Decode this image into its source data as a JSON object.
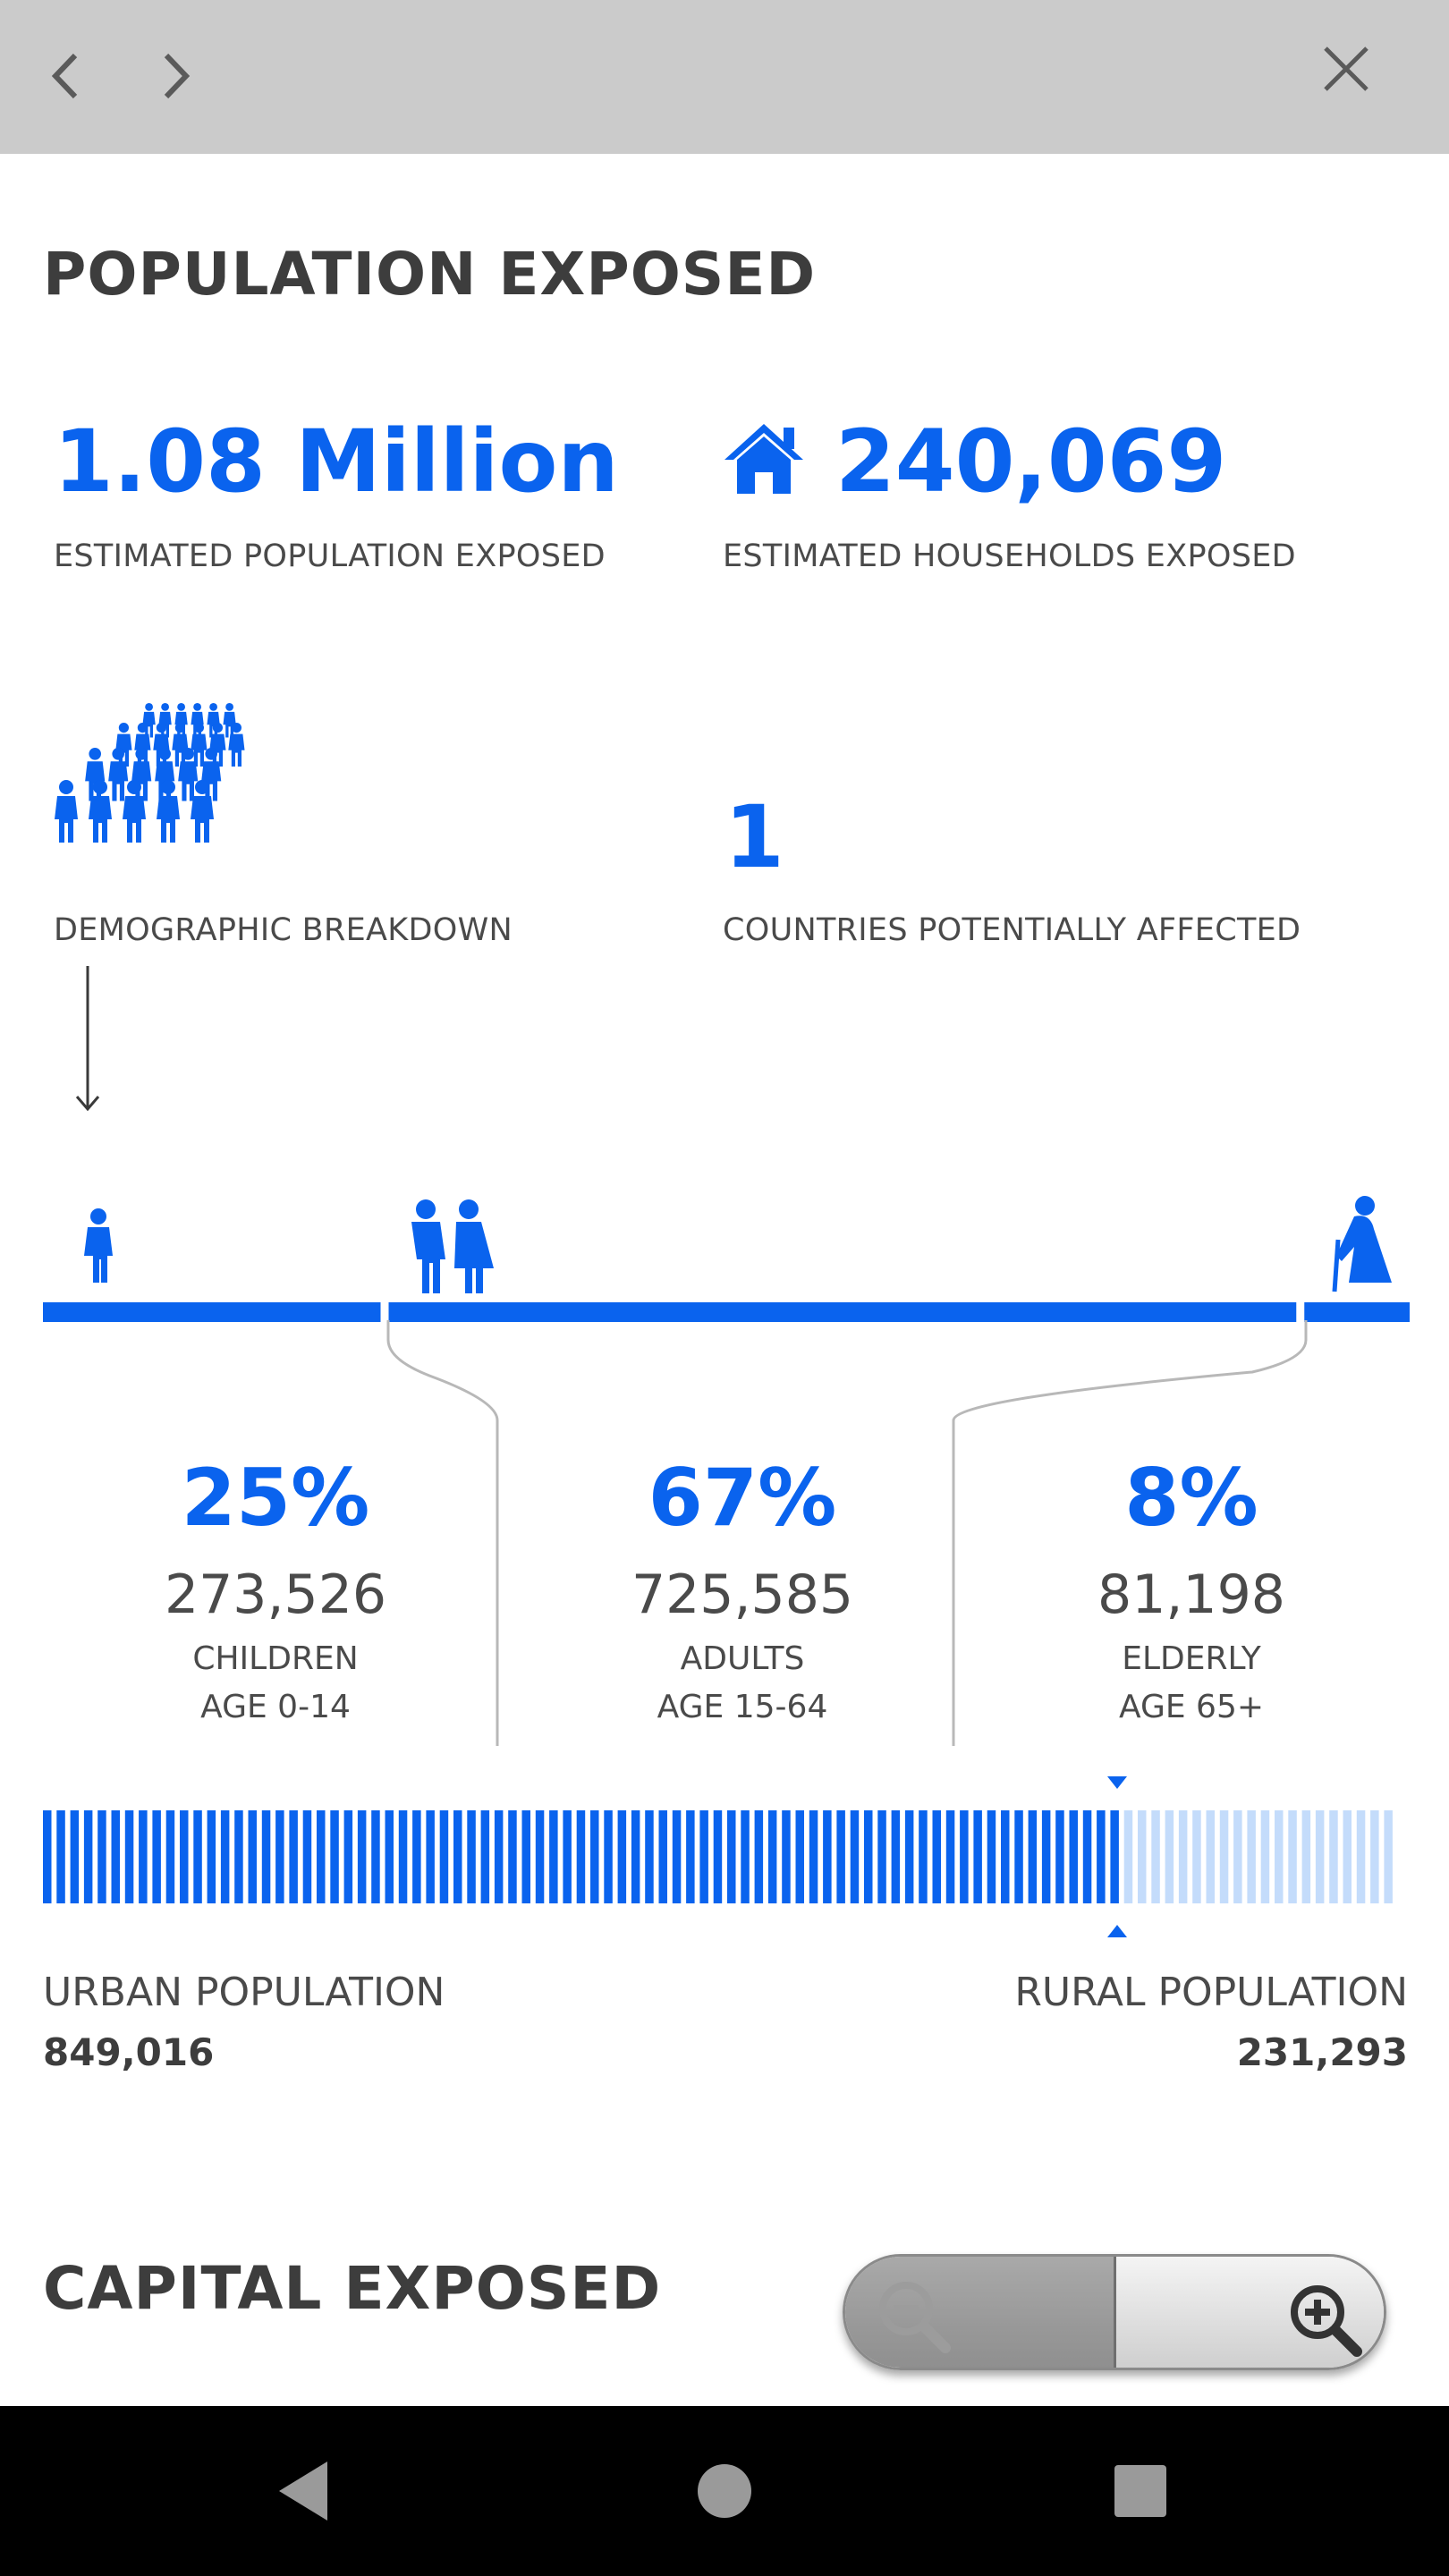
{
  "header": {
    "back_icon": "chevron-left-icon",
    "forward_icon": "chevron-right-icon",
    "close_icon": "close-icon"
  },
  "population_section": {
    "title": "POPULATION EXPOSED",
    "population_value": "1.08 Million",
    "population_caption": "ESTIMATED POPULATION EXPOSED",
    "households_icon": "house-icon",
    "households_value": "240,069",
    "households_caption": "ESTIMATED HOUSEHOLDS EXPOSED",
    "demographic_icon": "crowd-icon",
    "demographic_caption": "DEMOGRAPHIC BREAKDOWN",
    "countries_value": "1",
    "countries_caption": "COUNTRIES POTENTIALLY AFFECTED"
  },
  "age_breakdown": {
    "groups": [
      {
        "percent": "25%",
        "count": "273,526",
        "label": "CHILDREN",
        "age": "AGE 0-14",
        "icon": "child-icon",
        "share": 0.25
      },
      {
        "percent": "67%",
        "count": "725,585",
        "label": "ADULTS",
        "age": "AGE 15-64",
        "icon": "adults-icon",
        "share": 0.67
      },
      {
        "percent": "8%",
        "count": "81,198",
        "label": "ELDERLY",
        "age": "AGE 65+",
        "icon": "elderly-icon",
        "share": 0.08
      }
    ]
  },
  "urban_rural": {
    "urban_label": "URBAN POPULATION",
    "urban_value": "849,016",
    "rural_label": "RURAL POPULATION",
    "rural_value": "231,293",
    "urban_fraction": 0.786
  },
  "capital_section": {
    "title": "CAPITAL EXPOSED"
  },
  "zoom_control": {
    "zoom_out_icon": "zoom-out-icon",
    "zoom_in_icon": "zoom-in-icon"
  },
  "system_nav": {
    "back_icon": "triangle-back-icon",
    "home_icon": "circle-home-icon",
    "recents_icon": "square-recents-icon"
  },
  "colors": {
    "accent": "#0a63ee",
    "accent_light": "#c4dcfb",
    "text": "#3d3d3d",
    "topbar": "#cbcbcb"
  }
}
